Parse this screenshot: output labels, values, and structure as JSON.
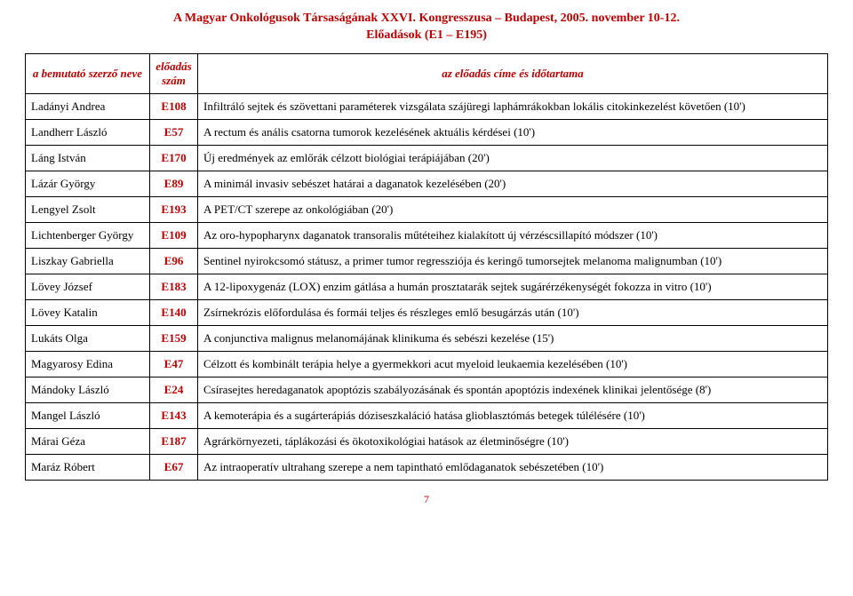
{
  "colors": {
    "accent": "#c00000",
    "border": "#000000",
    "text": "#000000",
    "background": "#ffffff"
  },
  "header": {
    "line1": "A Magyar Onkológusok Társaságának XXVI. Kongresszusa – Budapest, 2005. november 10-12.",
    "line2": "Előadások (E1 – E195)"
  },
  "columns": {
    "presenter": "a bemutató szerző neve",
    "code_line1": "előadás",
    "code_line2": "szám",
    "title": "az előadás címe és időtartama"
  },
  "rows": [
    {
      "name": "Ladányi Andrea",
      "code": "E108",
      "title": "Infiltráló sejtek és szövettani paraméterek vizsgálata szájüregi laphámrákokban lokális citokinkezelést követően (10')"
    },
    {
      "name": "Landherr László",
      "code": "E57",
      "title": "A rectum és anális csatorna tumorok kezelésének aktuális kérdései (10')"
    },
    {
      "name": "Láng István",
      "code": "E170",
      "title": "Új eredmények az emlőrák célzott biológiai terápiájában (20')"
    },
    {
      "name": "Lázár György",
      "code": "E89",
      "title": "A minimál invasiv sebészet határai a daganatok kezelésében (20')"
    },
    {
      "name": "Lengyel Zsolt",
      "code": "E193",
      "title": "A PET/CT szerepe az onkológiában (20')"
    },
    {
      "name": "Lichtenberger György",
      "code": "E109",
      "title": "Az oro-hypopharynx daganatok transoralis műtéteihez kialakított új vérzéscsillapító módszer (10')"
    },
    {
      "name": "Liszkay Gabriella",
      "code": "E96",
      "title": "Sentinel nyirokcsomó státusz, a primer tumor regressziója és keringő tumorsejtek melanoma malignumban (10')"
    },
    {
      "name": "Lövey József",
      "code": "E183",
      "title": "A 12-lipoxygenáz (LOX) enzim gátlása a humán  prosztatarák sejtek sugárérzékenységét fokozza in vitro (10')"
    },
    {
      "name": "Lövey Katalin",
      "code": "E140",
      "title": "Zsírnekrózis előfordulása és formái teljes és részleges emlő besugárzás után (10')"
    },
    {
      "name": "Lukáts Olga",
      "code": "E159",
      "title": "A conjunctiva malignus melanomájának klinikuma és sebészi kezelése (15')"
    },
    {
      "name": "Magyarosy Edina",
      "code": "E47",
      "title": "Célzott és kombinált terápia helye a gyermekkori acut myeloid leukaemia   kezelésében (10')"
    },
    {
      "name": "Mándoky László",
      "code": "E24",
      "title": "Csírasejtes heredaganatok apoptózis szabályozásának és spontán apoptózis indexének klinikai jelentősége (8')"
    },
    {
      "name": "Mangel László",
      "code": "E143",
      "title": "A kemoterápia és a sugárterápiás dóziseszkaláció hatása glioblasztómás betegek túlélésére (10')"
    },
    {
      "name": "Márai Géza",
      "code": "E187",
      "title": "Agrárkörnyezeti, táplákozási és ökotoxikológiai hatások az életminőségre (10')"
    },
    {
      "name": "Maráz Róbert",
      "code": "E67",
      "title": "Az intraoperatív ultrahang szerepe a nem tapintható emlődaganatok sebészetében (10')"
    }
  ],
  "page_number": "7"
}
